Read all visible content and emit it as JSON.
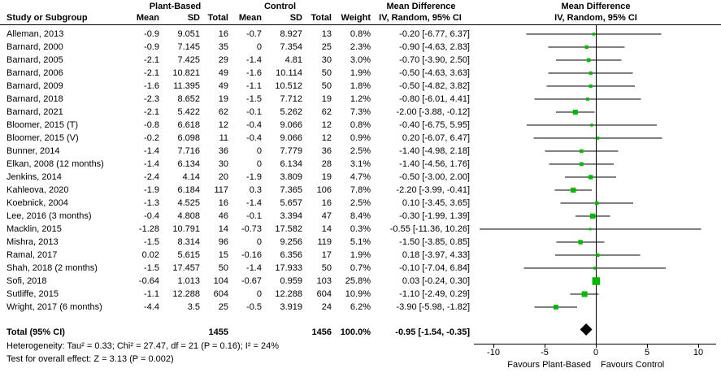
{
  "figure": {
    "header": {
      "group_plant": "Plant-Based",
      "group_control": "Control",
      "study": "Study or Subgroup",
      "mean": "Mean",
      "sd": "SD",
      "total": "Total",
      "weight": "Weight",
      "md_title": "Mean Difference",
      "md_subtitle": "IV, Random, 95% CI",
      "plot_title": "Mean Difference",
      "plot_subtitle": "IV, Random, 95% CI"
    },
    "studies": [
      {
        "name": "Alleman, 2013",
        "pb_mean": "-0.9",
        "pb_sd": "9.051",
        "pb_total": "16",
        "c_mean": "-0.7",
        "c_sd": "8.927",
        "c_total": "13",
        "weight": "0.8%",
        "ci": "-0.20 [-6.77, 6.37]"
      },
      {
        "name": "Barnard, 2000",
        "pb_mean": "-0.9",
        "pb_sd": "7.145",
        "pb_total": "35",
        "c_mean": "0",
        "c_sd": "7.354",
        "c_total": "25",
        "weight": "2.3%",
        "ci": "-0.90 [-4.63, 2.83]"
      },
      {
        "name": "Barnard, 2005",
        "pb_mean": "-2.1",
        "pb_sd": "7.425",
        "pb_total": "29",
        "c_mean": "-1.4",
        "c_sd": "4.81",
        "c_total": "30",
        "weight": "3.0%",
        "ci": "-0.70 [-3.90, 2.50]"
      },
      {
        "name": "Barnard, 2006",
        "pb_mean": "-2.1",
        "pb_sd": "10.821",
        "pb_total": "49",
        "c_mean": "-1.6",
        "c_sd": "10.114",
        "c_total": "50",
        "weight": "1.9%",
        "ci": "-0.50 [-4.63, 3.63]"
      },
      {
        "name": "Barnard, 2009",
        "pb_mean": "-1.6",
        "pb_sd": "11.395",
        "pb_total": "49",
        "c_mean": "-1.1",
        "c_sd": "10.512",
        "c_total": "50",
        "weight": "1.8%",
        "ci": "-0.50 [-4.82, 3.82]"
      },
      {
        "name": "Barnard, 2018",
        "pb_mean": "-2.3",
        "pb_sd": "8.652",
        "pb_total": "19",
        "c_mean": "-1.5",
        "c_sd": "7.712",
        "c_total": "19",
        "weight": "1.2%",
        "ci": "-0.80 [-6.01, 4.41]"
      },
      {
        "name": "Barnard, 2021",
        "pb_mean": "-2.1",
        "pb_sd": "5.422",
        "pb_total": "62",
        "c_mean": "-0.1",
        "c_sd": "5.262",
        "c_total": "62",
        "weight": "7.3%",
        "ci": "-2.00 [-3.88, -0.12]"
      },
      {
        "name": "Bloomer, 2015 (T)",
        "pb_mean": "-0.8",
        "pb_sd": "6.618",
        "pb_total": "12",
        "c_mean": "-0.4",
        "c_sd": "9.066",
        "c_total": "12",
        "weight": "0.8%",
        "ci": "-0.40 [-6.75, 5.95]"
      },
      {
        "name": "Bloomer, 2015 (V)",
        "pb_mean": "-0.2",
        "pb_sd": "6.098",
        "pb_total": "11",
        "c_mean": "-0.4",
        "c_sd": "9.066",
        "c_total": "12",
        "weight": "0.9%",
        "ci": "0.20 [-6.07, 6.47]"
      },
      {
        "name": "Bunner, 2014",
        "pb_mean": "-1.4",
        "pb_sd": "7.716",
        "pb_total": "36",
        "c_mean": "0",
        "c_sd": "7.779",
        "c_total": "36",
        "weight": "2.5%",
        "ci": "-1.40 [-4.98, 2.18]"
      },
      {
        "name": "Elkan, 2008 (12 months)",
        "pb_mean": "-1.4",
        "pb_sd": "6.134",
        "pb_total": "30",
        "c_mean": "0",
        "c_sd": "6.134",
        "c_total": "28",
        "weight": "3.1%",
        "ci": "-1.40 [-4.56, 1.76]"
      },
      {
        "name": "Jenkins, 2014",
        "pb_mean": "-2.4",
        "pb_sd": "4.14",
        "pb_total": "20",
        "c_mean": "-1.9",
        "c_sd": "3.809",
        "c_total": "19",
        "weight": "4.7%",
        "ci": "-0.50 [-3.00, 2.00]"
      },
      {
        "name": "Kahleova, 2020",
        "pb_mean": "-1.9",
        "pb_sd": "6.184",
        "pb_total": "117",
        "c_mean": "0.3",
        "c_sd": "7.365",
        "c_total": "106",
        "weight": "7.8%",
        "ci": "-2.20 [-3.99, -0.41]"
      },
      {
        "name": "Koebnick, 2004",
        "pb_mean": "-1.3",
        "pb_sd": "4.525",
        "pb_total": "16",
        "c_mean": "-1.4",
        "c_sd": "5.657",
        "c_total": "16",
        "weight": "2.5%",
        "ci": "0.10 [-3.45, 3.65]"
      },
      {
        "name": "Lee, 2016 (3 months)",
        "pb_mean": "-0.4",
        "pb_sd": "4.808",
        "pb_total": "46",
        "c_mean": "-0.1",
        "c_sd": "3.394",
        "c_total": "47",
        "weight": "8.4%",
        "ci": "-0.30 [-1.99, 1.39]"
      },
      {
        "name": "Macklin, 2015",
        "pb_mean": "-1.28",
        "pb_sd": "10.791",
        "pb_total": "14",
        "c_mean": "-0.73",
        "c_sd": "17.582",
        "c_total": "14",
        "weight": "0.3%",
        "ci": "-0.55 [-11.36, 10.26]"
      },
      {
        "name": "Mishra, 2013",
        "pb_mean": "-1.5",
        "pb_sd": "8.314",
        "pb_total": "96",
        "c_mean": "0",
        "c_sd": "9.256",
        "c_total": "119",
        "weight": "5.1%",
        "ci": "-1.50 [-3.85, 0.85]"
      },
      {
        "name": "Ramal, 2017",
        "pb_mean": "0.02",
        "pb_sd": "5.615",
        "pb_total": "15",
        "c_mean": "-0.16",
        "c_sd": "6.356",
        "c_total": "17",
        "weight": "1.9%",
        "ci": "0.18 [-3.97, 4.33]"
      },
      {
        "name": "Shah, 2018 (2 months)",
        "pb_mean": "-1.5",
        "pb_sd": "17.457",
        "pb_total": "50",
        "c_mean": "-1.4",
        "c_sd": "17.933",
        "c_total": "50",
        "weight": "0.7%",
        "ci": "-0.10 [-7.04, 6.84]"
      },
      {
        "name": "Sofi, 2018",
        "pb_mean": "-0.64",
        "pb_sd": "1.013",
        "pb_total": "104",
        "c_mean": "-0.67",
        "c_sd": "0.959",
        "c_total": "103",
        "weight": "25.8%",
        "ci": "0.03 [-0.24, 0.30]"
      },
      {
        "name": "Sutliffe, 2015",
        "pb_mean": "-1.1",
        "pb_sd": "12.288",
        "pb_total": "604",
        "c_mean": "0",
        "c_sd": "12.288",
        "c_total": "604",
        "weight": "10.9%",
        "ci": "-1.10 [-2.49, 0.29]"
      },
      {
        "name": "Wright, 2017 (6 months)",
        "pb_mean": "-4.4",
        "pb_sd": "3.5",
        "pb_total": "25",
        "c_mean": "-0.5",
        "c_sd": "3.919",
        "c_total": "24",
        "weight": "6.2%",
        "ci": "-3.90 [-5.98, -1.82]"
      }
    ],
    "total": {
      "label": "Total (95% CI)",
      "pb_total": "1455",
      "c_total": "1456",
      "weight": "100.0%",
      "ci": "-0.95 [-1.54, -0.35]"
    },
    "footnote1": "Heterogeneity: Tau² = 0.33; Chi² = 27.47, df = 21 (P = 0.16); I² = 24%",
    "footnote2": "Test for overall effect: Z = 3.13 (P = 0.002)"
  },
  "chart_data": {
    "type": "forest",
    "title": "Mean Difference",
    "subtitle": "IV, Random, 95% CI",
    "effect_measure": "Mean Difference, IV, Random, 95% CI",
    "xlim": [
      -11.5,
      11.9
    ],
    "ticks": [
      -10,
      -5,
      0,
      5,
      10
    ],
    "label_left": "Favours Plant-Based",
    "label_right": "Favours Control",
    "marker_color": "#00b800",
    "studies": [
      {
        "name": "Alleman, 2013",
        "est": -0.2,
        "lo": -6.77,
        "hi": 6.37,
        "weight": 0.8
      },
      {
        "name": "Barnard, 2000",
        "est": -0.9,
        "lo": -4.63,
        "hi": 2.83,
        "weight": 2.3
      },
      {
        "name": "Barnard, 2005",
        "est": -0.7,
        "lo": -3.9,
        "hi": 2.5,
        "weight": 3.0
      },
      {
        "name": "Barnard, 2006",
        "est": -0.5,
        "lo": -4.63,
        "hi": 3.63,
        "weight": 1.9
      },
      {
        "name": "Barnard, 2009",
        "est": -0.5,
        "lo": -4.82,
        "hi": 3.82,
        "weight": 1.8
      },
      {
        "name": "Barnard, 2018",
        "est": -0.8,
        "lo": -6.01,
        "hi": 4.41,
        "weight": 1.2
      },
      {
        "name": "Barnard, 2021",
        "est": -2.0,
        "lo": -3.88,
        "hi": -0.12,
        "weight": 7.3
      },
      {
        "name": "Bloomer, 2015 (T)",
        "est": -0.4,
        "lo": -6.75,
        "hi": 5.95,
        "weight": 0.8
      },
      {
        "name": "Bloomer, 2015 (V)",
        "est": 0.2,
        "lo": -6.07,
        "hi": 6.47,
        "weight": 0.9
      },
      {
        "name": "Bunner, 2014",
        "est": -1.4,
        "lo": -4.98,
        "hi": 2.18,
        "weight": 2.5
      },
      {
        "name": "Elkan, 2008 (12 months)",
        "est": -1.4,
        "lo": -4.56,
        "hi": 1.76,
        "weight": 3.1
      },
      {
        "name": "Jenkins, 2014",
        "est": -0.5,
        "lo": -3.0,
        "hi": 2.0,
        "weight": 4.7
      },
      {
        "name": "Kahleova, 2020",
        "est": -2.2,
        "lo": -3.99,
        "hi": -0.41,
        "weight": 7.8
      },
      {
        "name": "Koebnick, 2004",
        "est": 0.1,
        "lo": -3.45,
        "hi": 3.65,
        "weight": 2.5
      },
      {
        "name": "Lee, 2016 (3 months)",
        "est": -0.3,
        "lo": -1.99,
        "hi": 1.39,
        "weight": 8.4
      },
      {
        "name": "Macklin, 2015",
        "est": -0.55,
        "lo": -11.36,
        "hi": 10.26,
        "weight": 0.3
      },
      {
        "name": "Mishra, 2013",
        "est": -1.5,
        "lo": -3.85,
        "hi": 0.85,
        "weight": 5.1
      },
      {
        "name": "Ramal, 2017",
        "est": 0.18,
        "lo": -3.97,
        "hi": 4.33,
        "weight": 1.9
      },
      {
        "name": "Shah, 2018 (2 months)",
        "est": -0.1,
        "lo": -7.04,
        "hi": 6.84,
        "weight": 0.7
      },
      {
        "name": "Sofi, 2018",
        "est": 0.03,
        "lo": -0.24,
        "hi": 0.3,
        "weight": 25.8
      },
      {
        "name": "Sutliffe, 2015",
        "est": -1.1,
        "lo": -2.49,
        "hi": 0.29,
        "weight": 10.9
      },
      {
        "name": "Wright, 2017 (6 months)",
        "est": -3.9,
        "lo": -5.98,
        "hi": -1.82,
        "weight": 6.2
      }
    ],
    "total": {
      "est": -0.95,
      "lo": -1.54,
      "hi": -0.35,
      "weight": 100.0
    }
  }
}
